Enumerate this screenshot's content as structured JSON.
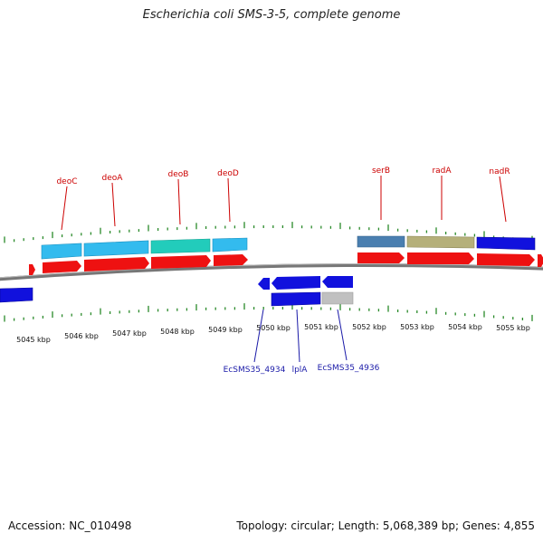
{
  "title": "Escherichia coli SMS-3-5, complete genome",
  "footer": {
    "accession": "Accession: NC_010498",
    "summary": "Topology: circular; Length: 5,068,389 bp; Genes: 4,855"
  },
  "colors": {
    "cds": "#ee1111",
    "light_blue": "#33bbee",
    "teal": "#22ccbb",
    "steel_blue": "#4a7fb0",
    "khaki": "#b5b07a",
    "blue": "#1111dd",
    "gray": "#c0c0c0",
    "tick": "#2a8a2a",
    "backbone": "#777777",
    "label_top": "#cc0000",
    "label_bottom": "#1a1aa8"
  },
  "scale_labels": [
    {
      "label": "5045 kbp",
      "kbp": 5045
    },
    {
      "label": "5046 kbp",
      "kbp": 5046
    },
    {
      "label": "5047 kbp",
      "kbp": 5047
    },
    {
      "label": "5048 kbp",
      "kbp": 5048
    },
    {
      "label": "5049 kbp",
      "kbp": 5049
    },
    {
      "label": "5050 kbp",
      "kbp": 5050
    },
    {
      "label": "5051 kbp",
      "kbp": 5051
    },
    {
      "label": "5052 kbp",
      "kbp": 5052
    },
    {
      "label": "5053 kbp",
      "kbp": 5053
    },
    {
      "label": "5054 kbp",
      "kbp": 5054
    },
    {
      "label": "5055 kbp",
      "kbp": 5055
    }
  ],
  "gene_labels_top": [
    "deoC",
    "deoA",
    "deoB",
    "deoD",
    "serB",
    "radA",
    "nadR"
  ],
  "gene_labels_bottom": [
    "EcSMS35_4934",
    "lplA",
    "EcSMS35_4936"
  ]
}
